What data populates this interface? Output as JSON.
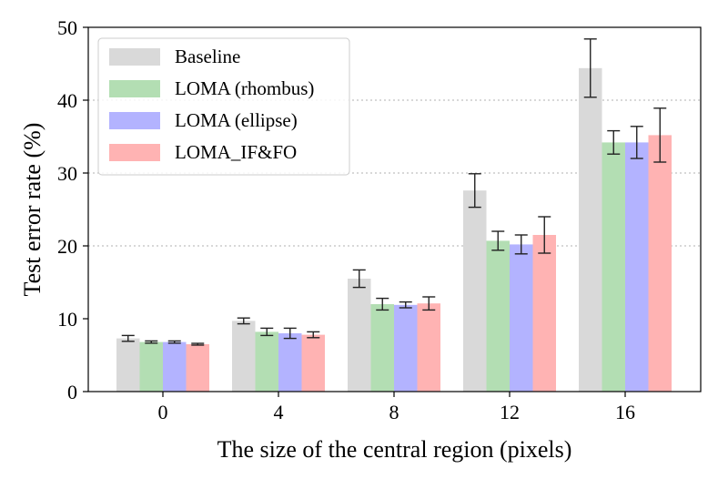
{
  "chart_data": {
    "type": "bar",
    "title": "",
    "xlabel": "The size of the central region (pixels)",
    "ylabel": "Test error rate (%)",
    "categories": [
      "0",
      "4",
      "8",
      "12",
      "16"
    ],
    "ylim": [
      0,
      50
    ],
    "yticks": [
      0,
      10,
      20,
      30,
      40,
      50
    ],
    "grid": "horizontal dotted at 20, 30, 40",
    "legend_position": "top-left",
    "series": [
      {
        "name": "Baseline",
        "color": "#d9d9d9",
        "values": [
          7.3,
          9.7,
          15.5,
          27.6,
          44.4
        ],
        "errors": [
          0.4,
          0.4,
          1.2,
          2.3,
          4.0
        ]
      },
      {
        "name": "LOMA (rhombus)",
        "color": "#b3deb3",
        "values": [
          6.8,
          8.2,
          12.0,
          20.7,
          34.2
        ],
        "errors": [
          0.15,
          0.5,
          0.8,
          1.3,
          1.6
        ]
      },
      {
        "name": "LOMA (ellipse)",
        "color": "#b3b3ff",
        "values": [
          6.8,
          8.0,
          11.9,
          20.2,
          34.2
        ],
        "errors": [
          0.15,
          0.7,
          0.4,
          1.3,
          2.2
        ]
      },
      {
        "name": "LOMA_IF&FO",
        "color": "#ffb3b3",
        "values": [
          6.5,
          7.8,
          12.1,
          21.5,
          35.2
        ],
        "errors": [
          0.12,
          0.4,
          0.9,
          2.5,
          3.7
        ]
      }
    ]
  }
}
